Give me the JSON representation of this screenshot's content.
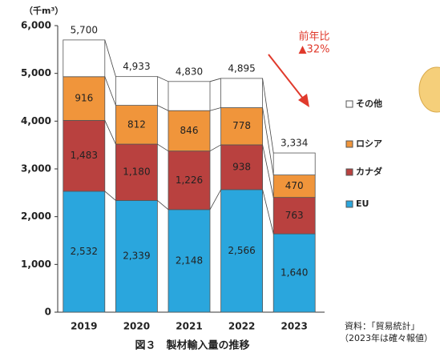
{
  "chart_data": {
    "type": "bar",
    "stacked": true,
    "title": "図３　製材輸入量の推移",
    "y_unit": "（千m³）",
    "categories": [
      "2019",
      "2020",
      "2021",
      "2022",
      "2023"
    ],
    "series": [
      {
        "name": "EU",
        "color": "#2aa6dd",
        "values": [
          2532,
          2339,
          2148,
          2566,
          1640
        ],
        "value_labels": [
          "2,532",
          "2,339",
          "2,148",
          "2,566",
          "1,640"
        ]
      },
      {
        "name": "カナダ",
        "color": "#b9413f",
        "values": [
          1483,
          1180,
          1226,
          938,
          763
        ],
        "value_labels": [
          "1,483",
          "1,180",
          "1,226",
          "938",
          "763"
        ]
      },
      {
        "name": "ロシア",
        "color": "#f0953b",
        "values": [
          916,
          812,
          846,
          778,
          470
        ]
      },
      {
        "name": "その他",
        "color": "#ffffff",
        "values": [
          769,
          602,
          610,
          613,
          461
        ]
      }
    ],
    "totals": [
      5700,
      4933,
      4830,
      4895,
      3334
    ],
    "total_labels": [
      "5,700",
      "4,933",
      "4,830",
      "4,895",
      "3,334"
    ],
    "ylim": [
      0,
      6000
    ],
    "yticks": [
      0,
      {
        "value": 1000,
        "label": "1,000"
      },
      {
        "value": 2000,
        "label": "2,000"
      },
      {
        "value": 3000,
        "label": "3,000"
      },
      {
        "value": 4000,
        "label": "4,000"
      },
      {
        "value": 5000,
        "label": "5,000"
      },
      {
        "value": 6000,
        "label": "6,000"
      }
    ],
    "annotation": {
      "line1": "前年比",
      "line2": "▲32%"
    },
    "source": {
      "line1": "資料：「貿易統計」",
      "line2": "（2023年は確々報値）"
    }
  }
}
